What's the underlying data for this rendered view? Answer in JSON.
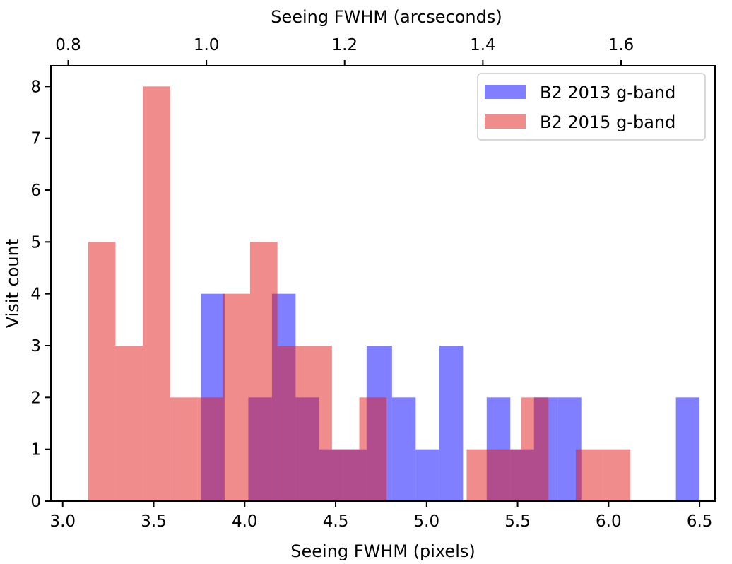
{
  "chart_data": {
    "type": "bar",
    "subtype": "overlapping-histogram",
    "xlabel": "Seeing FWHM (pixels)",
    "ylabel": "Visit count",
    "secondary_xlabel": "Seeing FWHM (arcseconds)",
    "xlim": [
      3.0,
      6.5
    ],
    "ylim": [
      0,
      8.4
    ],
    "xticks": [
      "3.0",
      "3.5",
      "4.0",
      "4.5",
      "5.0",
      "5.5",
      "6.0",
      "6.5"
    ],
    "yticks": [
      "0",
      "1",
      "2",
      "3",
      "4",
      "5",
      "6",
      "7",
      "8"
    ],
    "secondary_xticks": [
      "0.8",
      "1.0",
      "1.2",
      "1.4",
      "1.6"
    ],
    "grid": false,
    "legend_position": "top-right",
    "series": [
      {
        "name": "B2 2013 g-band",
        "color": "#0000ff",
        "opacity": 0.5,
        "bins": [
          {
            "start": 3.76,
            "end": 3.89,
            "count": 4
          },
          {
            "start": 4.02,
            "end": 4.15,
            "count": 2
          },
          {
            "start": 4.15,
            "end": 4.28,
            "count": 4
          },
          {
            "start": 4.28,
            "end": 4.41,
            "count": 2
          },
          {
            "start": 4.41,
            "end": 4.54,
            "count": 1
          },
          {
            "start": 4.54,
            "end": 4.67,
            "count": 1
          },
          {
            "start": 4.67,
            "end": 4.81,
            "count": 3
          },
          {
            "start": 4.81,
            "end": 4.94,
            "count": 2
          },
          {
            "start": 4.94,
            "end": 5.07,
            "count": 1
          },
          {
            "start": 5.07,
            "end": 5.2,
            "count": 3
          },
          {
            "start": 5.33,
            "end": 5.46,
            "count": 2
          },
          {
            "start": 5.46,
            "end": 5.59,
            "count": 1
          },
          {
            "start": 5.59,
            "end": 5.72,
            "count": 2
          },
          {
            "start": 5.72,
            "end": 5.85,
            "count": 2
          },
          {
            "start": 6.37,
            "end": 6.5,
            "count": 2
          }
        ]
      },
      {
        "name": "B2 2015 g-band",
        "color": "#e41a1c",
        "opacity": 0.5,
        "bins": [
          {
            "start": 3.14,
            "end": 3.29,
            "count": 5
          },
          {
            "start": 3.29,
            "end": 3.44,
            "count": 3
          },
          {
            "start": 3.44,
            "end": 3.59,
            "count": 8
          },
          {
            "start": 3.59,
            "end": 3.74,
            "count": 2
          },
          {
            "start": 3.74,
            "end": 3.88,
            "count": 2
          },
          {
            "start": 3.88,
            "end": 4.03,
            "count": 4
          },
          {
            "start": 4.03,
            "end": 4.18,
            "count": 5
          },
          {
            "start": 4.18,
            "end": 4.33,
            "count": 3
          },
          {
            "start": 4.33,
            "end": 4.48,
            "count": 3
          },
          {
            "start": 4.48,
            "end": 4.63,
            "count": 1
          },
          {
            "start": 4.63,
            "end": 4.78,
            "count": 2
          },
          {
            "start": 5.22,
            "end": 5.37,
            "count": 1
          },
          {
            "start": 5.37,
            "end": 5.52,
            "count": 1
          },
          {
            "start": 5.52,
            "end": 5.67,
            "count": 2
          },
          {
            "start": 5.82,
            "end": 5.97,
            "count": 1
          },
          {
            "start": 5.97,
            "end": 6.12,
            "count": 1
          }
        ]
      }
    ]
  }
}
